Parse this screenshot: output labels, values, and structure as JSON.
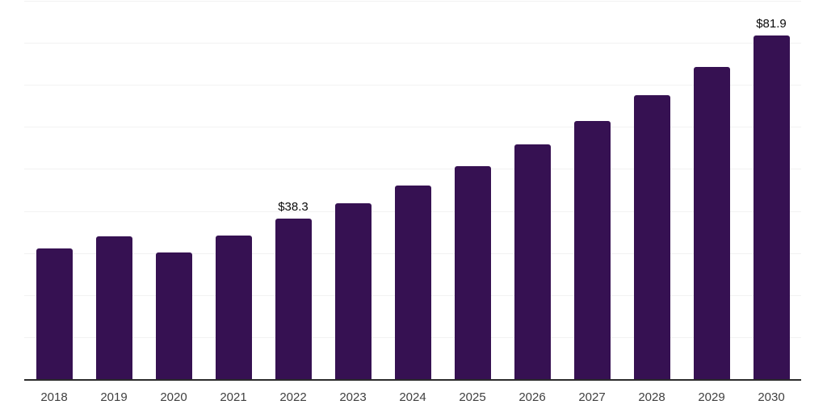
{
  "chart_data": {
    "type": "bar",
    "title": "",
    "xlabel": "",
    "ylabel": "",
    "categories": [
      "2018",
      "2019",
      "2020",
      "2021",
      "2022",
      "2023",
      "2024",
      "2025",
      "2026",
      "2027",
      "2028",
      "2029",
      "2030"
    ],
    "values": [
      31.2,
      34.1,
      30.4,
      34.4,
      38.3,
      42.1,
      46.3,
      50.9,
      56.0,
      61.6,
      67.7,
      74.5,
      81.9
    ],
    "data_labels": [
      "",
      "",
      "",
      "",
      "$38.3",
      "",
      "",
      "",
      "",
      "",
      "",
      "",
      "$81.9"
    ],
    "ylim": [
      0,
      90
    ],
    "grid": "horizontal",
    "grid_step": 10,
    "legend": "none",
    "y_axis_labels": "none"
  },
  "style": {
    "bar_color": "#361152",
    "grid_color": "#f2f2f2",
    "axis_color": "#2b2b2b",
    "tick_label_color": "#404040",
    "data_label_color": "#0a0a0a",
    "background": "#ffffff"
  }
}
